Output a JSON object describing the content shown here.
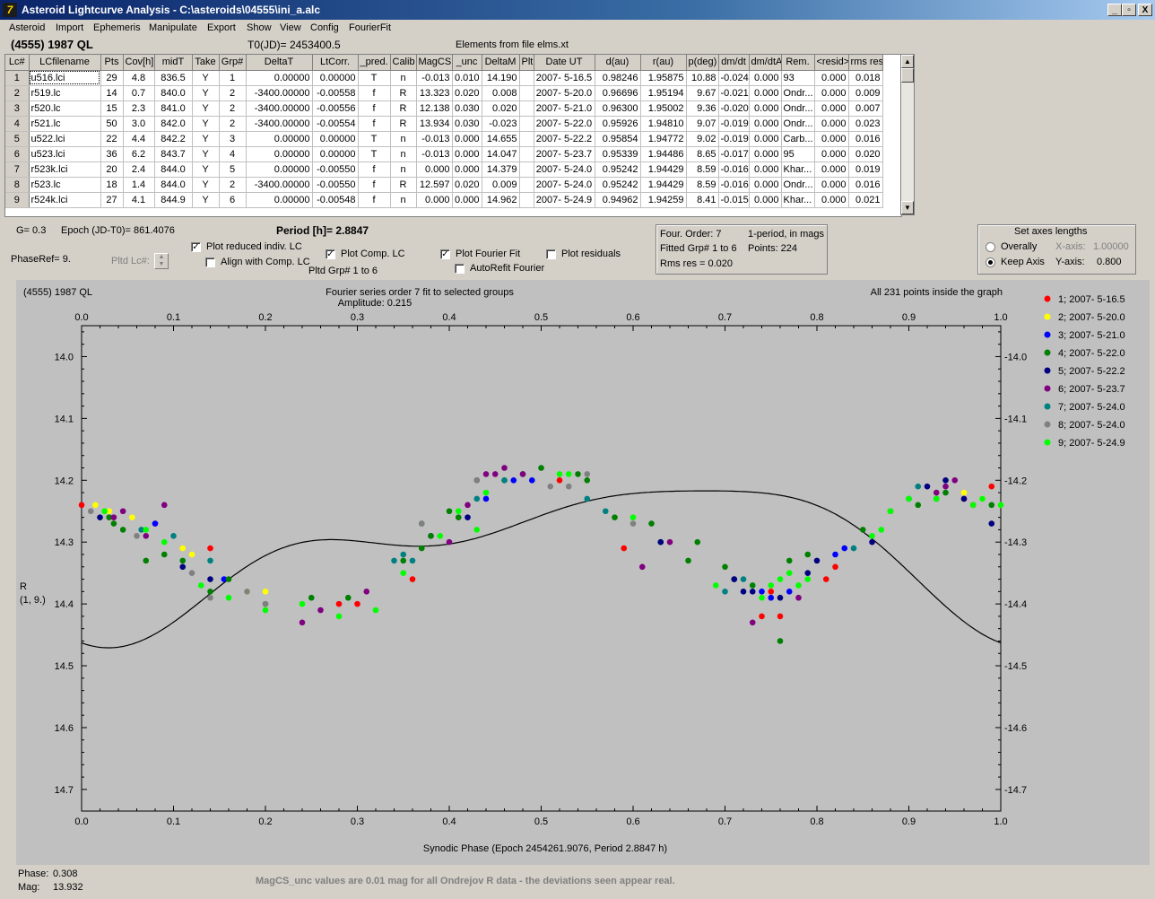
{
  "window": {
    "title": "Asteroid Lightcurve Analysis - C:\\asteroids\\04555\\ini_a.alc",
    "controls": [
      "_",
      "▫",
      "X"
    ]
  },
  "menu": [
    "Asteroid",
    "Import",
    "Ephemeris",
    "Manipulate",
    "Export",
    "Show",
    "View",
    "Config",
    "FourierFit"
  ],
  "header": {
    "asteroid": "(4555) 1987 QL",
    "t0": "T0(JD)= 2453400.5",
    "elements": "Elements from file elms.xt"
  },
  "table": {
    "columns": [
      "Lc#",
      "LCfilename",
      "Pts",
      "Cov[h]",
      "midT",
      "Take",
      "Grp#",
      "DeltaT",
      "LtCorr.",
      "_pred.",
      "Calib",
      "MagCS",
      "_unc",
      "DeltaM",
      "Plt",
      "Date UT",
      "d(au)",
      "r(au)",
      "p(deg)",
      "dm/dt",
      "dm/dtA",
      "Rem.",
      "<resid>",
      "rms res"
    ],
    "rows": [
      [
        "1",
        "u516.lci",
        "29",
        "4.8",
        "836.5",
        "Y",
        "1",
        "0.00000",
        "0.00000",
        "T",
        "n",
        "-0.013",
        "0.010",
        "14.190",
        "",
        "2007- 5-16.5",
        "0.98246",
        "1.95875",
        "10.88",
        "-0.024",
        "0.000",
        "93",
        "0.000",
        "0.018"
      ],
      [
        "2",
        "r519.lc",
        "14",
        "0.7",
        "840.0",
        "Y",
        "2",
        "-3400.00000",
        "-0.00558",
        "f",
        "R",
        "13.323",
        "0.020",
        "0.008",
        "",
        "2007- 5-20.0",
        "0.96696",
        "1.95194",
        "9.67",
        "-0.021",
        "0.000",
        "Ondr...",
        "0.000",
        "0.009"
      ],
      [
        "3",
        "r520.lc",
        "15",
        "2.3",
        "841.0",
        "Y",
        "2",
        "-3400.00000",
        "-0.00556",
        "f",
        "R",
        "12.138",
        "0.030",
        "0.020",
        "",
        "2007- 5-21.0",
        "0.96300",
        "1.95002",
        "9.36",
        "-0.020",
        "0.000",
        "Ondr...",
        "0.000",
        "0.007"
      ],
      [
        "4",
        "r521.lc",
        "50",
        "3.0",
        "842.0",
        "Y",
        "2",
        "-3400.00000",
        "-0.00554",
        "f",
        "R",
        "13.934",
        "0.030",
        "-0.023",
        "",
        "2007- 5-22.0",
        "0.95926",
        "1.94810",
        "9.07",
        "-0.019",
        "0.000",
        "Ondr...",
        "0.000",
        "0.023"
      ],
      [
        "5",
        "u522.lci",
        "22",
        "4.4",
        "842.2",
        "Y",
        "3",
        "0.00000",
        "0.00000",
        "T",
        "n",
        "-0.013",
        "0.000",
        "14.655",
        "",
        "2007- 5-22.2",
        "0.95854",
        "1.94772",
        "9.02",
        "-0.019",
        "0.000",
        "Carb...",
        "0.000",
        "0.016"
      ],
      [
        "6",
        "u523.lci",
        "36",
        "6.2",
        "843.7",
        "Y",
        "4",
        "0.00000",
        "0.00000",
        "T",
        "n",
        "-0.013",
        "0.000",
        "14.047",
        "",
        "2007- 5-23.7",
        "0.95339",
        "1.94486",
        "8.65",
        "-0.017",
        "0.000",
        "95",
        "0.000",
        "0.020"
      ],
      [
        "7",
        "r523k.lci",
        "20",
        "2.4",
        "844.0",
        "Y",
        "5",
        "0.00000",
        "-0.00550",
        "f",
        "n",
        "0.000",
        "0.000",
        "14.379",
        "",
        "2007- 5-24.0",
        "0.95242",
        "1.94429",
        "8.59",
        "-0.016",
        "0.000",
        "Khar...",
        "0.000",
        "0.019"
      ],
      [
        "8",
        "r523.lc",
        "18",
        "1.4",
        "844.0",
        "Y",
        "2",
        "-3400.00000",
        "-0.00550",
        "f",
        "R",
        "12.597",
        "0.020",
        "0.009",
        "",
        "2007- 5-24.0",
        "0.95242",
        "1.94429",
        "8.59",
        "-0.016",
        "0.000",
        "Ondr...",
        "0.000",
        "0.016"
      ],
      [
        "9",
        "r524k.lci",
        "27",
        "4.1",
        "844.9",
        "Y",
        "6",
        "0.00000",
        "-0.00548",
        "f",
        "n",
        "0.000",
        "0.000",
        "14.962",
        "",
        "2007- 5-24.9",
        "0.94962",
        "1.94259",
        "8.41",
        "-0.015",
        "0.000",
        "Khar...",
        "0.000",
        "0.021"
      ]
    ]
  },
  "controls": {
    "g": "G= 0.3",
    "epoch": "Epoch (JD-T0)= 861.4076",
    "period": "Period [h]= 2.8847",
    "phaseref": "PhaseRef= 9.",
    "pltd_lc": "Pltd Lc#:",
    "plot_reduced": "Plot reduced indiv. LC",
    "align_comp": "Align with Comp. LC",
    "plot_comp": "Plot Comp. LC",
    "pltd_grp": "Pltd Grp#  1   to   6",
    "plot_fourier": "Plot Fourier Fit",
    "autorefit": "AutoRefit Fourier",
    "plot_resid": "Plot residuals",
    "fourier_info": {
      "order": "Four. Order:  7",
      "period_note": "1-period, in mags",
      "fitted": "Fitted Grp# 1 to 6",
      "points": "Points: 224",
      "rms": "Rms res     = 0.020"
    },
    "axes": {
      "title": "Set axes lengths",
      "overally": "Overally",
      "keep": "Keep Axis",
      "xlabel": "X-axis:",
      "xval": "1.00000",
      "ylabel": "Y-axis:",
      "yval": "0.800"
    }
  },
  "chart_data": {
    "type": "scatter",
    "title": "Fourier series order 7 fit to selected groups",
    "subtitle": "Amplitude: 0.215",
    "corner_left": "(4555) 1987 QL",
    "corner_right": "All 231 points inside the graph",
    "xlabel": "Synodic Phase (Epoch 2454261.9076, Period 2.8847 h)",
    "ylabel": "R",
    "ylabel2": "(1, 9.)",
    "xlim": [
      0.0,
      1.0
    ],
    "ylim": [
      14.7,
      13.95
    ],
    "y_inverted": true,
    "xticks": [
      "0.0",
      "0.1",
      "0.2",
      "0.3",
      "0.4",
      "0.5",
      "0.6",
      "0.7",
      "0.8",
      "0.9",
      "1.0"
    ],
    "yticks": [
      "14.0",
      "14.1",
      "14.2",
      "14.3",
      "14.4",
      "14.5",
      "14.6",
      "14.7"
    ],
    "fit": {
      "mean": 14.31,
      "terms": [
        [
          0.085,
          0.05
        ],
        [
          0.05,
          0.0
        ],
        [
          0.018,
          0.012
        ]
      ]
    },
    "series": [
      {
        "name": "1; 2007- 5-16.5",
        "color": "#ff0000",
        "points": [
          [
            0.0,
            14.24
          ],
          [
            0.08,
            14.27
          ],
          [
            0.14,
            14.31
          ],
          [
            0.28,
            14.4
          ],
          [
            0.3,
            14.4
          ],
          [
            0.36,
            14.36
          ],
          [
            0.52,
            14.2
          ],
          [
            0.59,
            14.31
          ],
          [
            0.74,
            14.42
          ],
          [
            0.75,
            14.38
          ],
          [
            0.76,
            14.42
          ],
          [
            0.81,
            14.36
          ],
          [
            0.82,
            14.34
          ],
          [
            0.96,
            14.23
          ],
          [
            0.97,
            14.24
          ],
          [
            0.99,
            14.21
          ]
        ]
      },
      {
        "name": "2; 2007- 5-20.0",
        "color": "#ffff00",
        "points": [
          [
            0.015,
            14.24
          ],
          [
            0.03,
            14.25
          ],
          [
            0.055,
            14.26
          ],
          [
            0.11,
            14.31
          ],
          [
            0.12,
            14.32
          ],
          [
            0.18,
            14.38
          ],
          [
            0.2,
            14.38
          ],
          [
            0.96,
            14.22
          ],
          [
            0.98,
            14.23
          ],
          [
            1.0,
            14.24
          ]
        ]
      },
      {
        "name": "3; 2007- 5-21.0",
        "color": "#0000ff",
        "points": [
          [
            0.08,
            14.27
          ],
          [
            0.155,
            14.36
          ],
          [
            0.38,
            14.29
          ],
          [
            0.44,
            14.23
          ],
          [
            0.47,
            14.2
          ],
          [
            0.49,
            14.2
          ],
          [
            0.74,
            14.38
          ],
          [
            0.75,
            14.39
          ],
          [
            0.77,
            14.38
          ],
          [
            0.82,
            14.32
          ],
          [
            0.83,
            14.31
          ]
        ]
      },
      {
        "name": "4; 2007- 5-22.0",
        "color": "#008000",
        "points": [
          [
            0.03,
            14.26
          ],
          [
            0.035,
            14.27
          ],
          [
            0.045,
            14.28
          ],
          [
            0.07,
            14.33
          ],
          [
            0.09,
            14.32
          ],
          [
            0.11,
            14.33
          ],
          [
            0.14,
            14.38
          ],
          [
            0.16,
            14.36
          ],
          [
            0.2,
            14.4
          ],
          [
            0.25,
            14.39
          ],
          [
            0.29,
            14.39
          ],
          [
            0.35,
            14.33
          ],
          [
            0.37,
            14.31
          ],
          [
            0.38,
            14.29
          ],
          [
            0.4,
            14.25
          ],
          [
            0.41,
            14.26
          ],
          [
            0.46,
            14.2
          ],
          [
            0.48,
            14.19
          ],
          [
            0.5,
            14.18
          ],
          [
            0.54,
            14.19
          ],
          [
            0.55,
            14.2
          ],
          [
            0.58,
            14.26
          ],
          [
            0.62,
            14.27
          ],
          [
            0.63,
            14.3
          ],
          [
            0.66,
            14.33
          ],
          [
            0.67,
            14.3
          ],
          [
            0.7,
            14.34
          ],
          [
            0.71,
            14.36
          ],
          [
            0.73,
            14.37
          ],
          [
            0.76,
            14.46
          ],
          [
            0.77,
            14.33
          ],
          [
            0.79,
            14.32
          ],
          [
            0.85,
            14.28
          ],
          [
            0.88,
            14.25
          ],
          [
            0.9,
            14.23
          ],
          [
            0.91,
            14.24
          ],
          [
            0.93,
            14.23
          ],
          [
            0.94,
            14.22
          ],
          [
            0.99,
            14.24
          ]
        ]
      },
      {
        "name": "5; 2007- 5-22.2",
        "color": "#000080",
        "points": [
          [
            0.02,
            14.26
          ],
          [
            0.11,
            14.34
          ],
          [
            0.14,
            14.36
          ],
          [
            0.42,
            14.26
          ],
          [
            0.63,
            14.3
          ],
          [
            0.71,
            14.36
          ],
          [
            0.72,
            14.38
          ],
          [
            0.73,
            14.38
          ],
          [
            0.76,
            14.39
          ],
          [
            0.79,
            14.35
          ],
          [
            0.8,
            14.33
          ],
          [
            0.86,
            14.3
          ],
          [
            0.92,
            14.21
          ],
          [
            0.94,
            14.2
          ],
          [
            0.96,
            14.23
          ],
          [
            0.99,
            14.27
          ]
        ]
      },
      {
        "name": "6; 2007- 5-23.7",
        "color": "#800080",
        "points": [
          [
            0.035,
            14.26
          ],
          [
            0.045,
            14.25
          ],
          [
            0.07,
            14.29
          ],
          [
            0.09,
            14.24
          ],
          [
            0.24,
            14.43
          ],
          [
            0.26,
            14.41
          ],
          [
            0.31,
            14.38
          ],
          [
            0.4,
            14.3
          ],
          [
            0.42,
            14.24
          ],
          [
            0.43,
            14.2
          ],
          [
            0.44,
            14.19
          ],
          [
            0.45,
            14.19
          ],
          [
            0.46,
            14.18
          ],
          [
            0.48,
            14.19
          ],
          [
            0.61,
            14.34
          ],
          [
            0.64,
            14.3
          ],
          [
            0.73,
            14.43
          ],
          [
            0.78,
            14.39
          ],
          [
            0.93,
            14.22
          ],
          [
            0.94,
            14.21
          ],
          [
            0.95,
            14.2
          ]
        ]
      },
      {
        "name": "7; 2007- 5-24.0",
        "color": "#008080",
        "points": [
          [
            0.065,
            14.28
          ],
          [
            0.1,
            14.29
          ],
          [
            0.14,
            14.33
          ],
          [
            0.34,
            14.33
          ],
          [
            0.35,
            14.32
          ],
          [
            0.36,
            14.33
          ],
          [
            0.37,
            14.27
          ],
          [
            0.43,
            14.23
          ],
          [
            0.46,
            14.2
          ],
          [
            0.55,
            14.23
          ],
          [
            0.57,
            14.25
          ],
          [
            0.7,
            14.38
          ],
          [
            0.72,
            14.36
          ],
          [
            0.84,
            14.31
          ],
          [
            0.91,
            14.21
          ]
        ]
      },
      {
        "name": "8; 2007- 5-24.0",
        "color": "#808080",
        "points": [
          [
            0.01,
            14.25
          ],
          [
            0.06,
            14.29
          ],
          [
            0.12,
            14.35
          ],
          [
            0.14,
            14.39
          ],
          [
            0.18,
            14.38
          ],
          [
            0.2,
            14.4
          ],
          [
            0.37,
            14.27
          ],
          [
            0.43,
            14.2
          ],
          [
            0.51,
            14.21
          ],
          [
            0.53,
            14.21
          ],
          [
            0.55,
            14.19
          ],
          [
            0.6,
            14.27
          ]
        ]
      },
      {
        "name": "9; 2007- 5-24.9",
        "color": "#00ff00",
        "points": [
          [
            0.025,
            14.25
          ],
          [
            0.07,
            14.28
          ],
          [
            0.09,
            14.3
          ],
          [
            0.13,
            14.37
          ],
          [
            0.16,
            14.39
          ],
          [
            0.2,
            14.41
          ],
          [
            0.24,
            14.4
          ],
          [
            0.28,
            14.42
          ],
          [
            0.32,
            14.41
          ],
          [
            0.35,
            14.35
          ],
          [
            0.39,
            14.29
          ],
          [
            0.41,
            14.25
          ],
          [
            0.43,
            14.28
          ],
          [
            0.44,
            14.22
          ],
          [
            0.52,
            14.19
          ],
          [
            0.53,
            14.19
          ],
          [
            0.6,
            14.26
          ],
          [
            0.69,
            14.37
          ],
          [
            0.74,
            14.39
          ],
          [
            0.75,
            14.37
          ],
          [
            0.76,
            14.36
          ],
          [
            0.77,
            14.35
          ],
          [
            0.78,
            14.37
          ],
          [
            0.79,
            14.36
          ],
          [
            0.86,
            14.29
          ],
          [
            0.87,
            14.28
          ],
          [
            0.88,
            14.25
          ],
          [
            0.9,
            14.23
          ],
          [
            0.93,
            14.23
          ],
          [
            0.97,
            14.24
          ],
          [
            0.98,
            14.23
          ],
          [
            1.0,
            14.24
          ]
        ]
      }
    ]
  },
  "status": {
    "phase_label": "Phase:",
    "phase_val": "0.308",
    "mag_label": "Mag:",
    "mag_val": "13.932",
    "note": "MagCS_unc values are 0.01 mag for all Ondrejov R data - the deviations seen appear real."
  }
}
